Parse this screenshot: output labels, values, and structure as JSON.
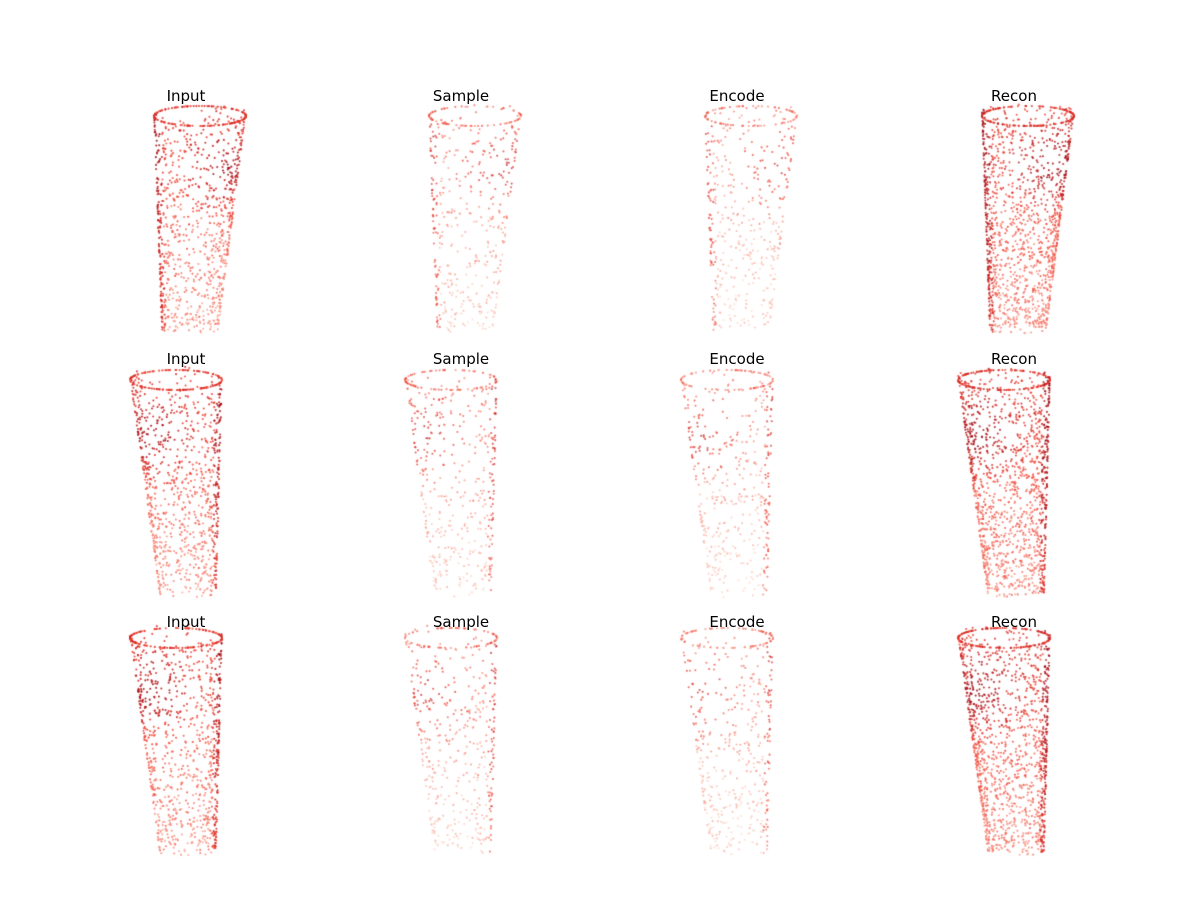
{
  "figure": {
    "column_titles": [
      "Input",
      "Sample",
      "Encode",
      "Recon"
    ],
    "row_count": 3,
    "colormap": "Reds",
    "colors": {
      "background": "#ffffff",
      "title_text": "#000000",
      "light_point": "#fcd9c9",
      "mid_point": "#ef3b2c",
      "dark_point": "#99000d"
    }
  },
  "rows": [
    {
      "orientation": "rim-tilted-right",
      "panels": [
        {
          "title": "Input",
          "kind": "input"
        },
        {
          "title": "Sample",
          "kind": "sample"
        },
        {
          "title": "Encode",
          "kind": "encode"
        },
        {
          "title": "Recon",
          "kind": "recon"
        }
      ]
    },
    {
      "orientation": "rim-tilted-left",
      "panels": [
        {
          "title": "Input",
          "kind": "input"
        },
        {
          "title": "Sample",
          "kind": "sample"
        },
        {
          "title": "Encode",
          "kind": "encode"
        },
        {
          "title": "Recon",
          "kind": "recon"
        }
      ]
    },
    {
      "orientation": "rim-tilted-left",
      "panels": [
        {
          "title": "Input",
          "kind": "input"
        },
        {
          "title": "Sample",
          "kind": "sample"
        },
        {
          "title": "Encode",
          "kind": "encode"
        },
        {
          "title": "Recon",
          "kind": "recon"
        }
      ]
    }
  ]
}
